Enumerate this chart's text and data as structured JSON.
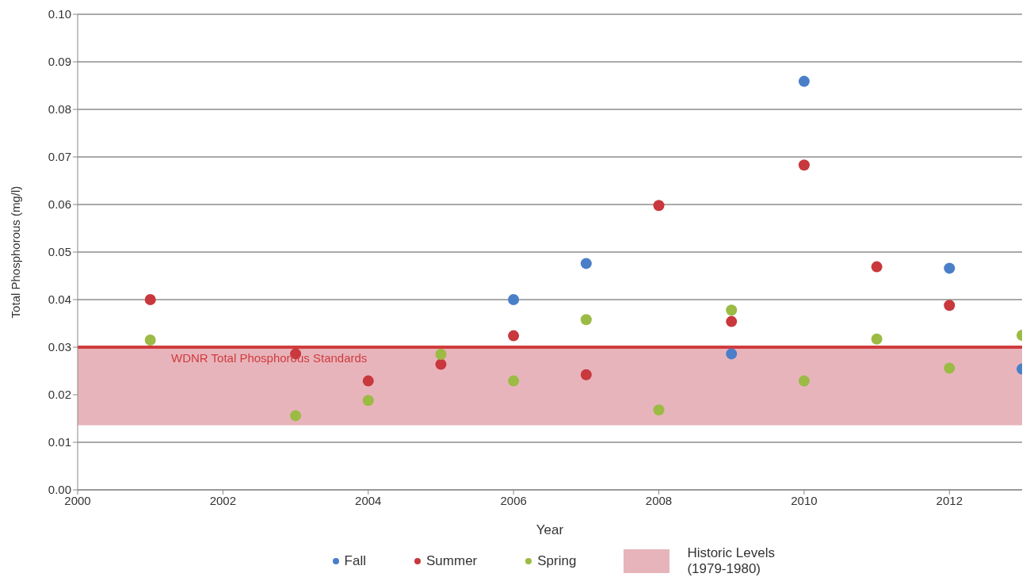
{
  "chart_data": {
    "type": "scatter",
    "xlabel": "Year",
    "ylabel": "Total Phosphorous (mg/l)",
    "xlim": [
      2000,
      2013
    ],
    "xticks": [
      2000,
      2002,
      2004,
      2006,
      2008,
      2010,
      2012
    ],
    "ylim": [
      0,
      0.1
    ],
    "yticks": [
      {
        "value": 0,
        "label": "0.00"
      },
      {
        "value": 0.01,
        "label": "0.01"
      },
      {
        "value": 0.02,
        "label": "0.02"
      },
      {
        "value": 0.03,
        "label": "0.03"
      },
      {
        "value": 0.04,
        "label": "0.04"
      },
      {
        "value": 0.05,
        "label": "0.05"
      },
      {
        "value": 0.06,
        "label": "0.06"
      },
      {
        "value": 0.07,
        "label": "0.07"
      },
      {
        "value": 0.08,
        "label": "0.08"
      },
      {
        "value": 0.09,
        "label": "0.09"
      },
      {
        "value": 0.1,
        "label": "0.10"
      }
    ],
    "grid": "y",
    "legend": "bottom",
    "marker": "circle",
    "series": [
      {
        "name": "Fall",
        "color": "#4a7fc8",
        "x": [
          2006,
          2007,
          2009,
          2010,
          2012,
          2013
        ],
        "values": [
          0.04,
          0.0476,
          0.0286,
          0.0859,
          0.0466,
          0.0254
        ]
      },
      {
        "name": "Summer",
        "color": "#c8383c",
        "x": [
          2001,
          2003,
          2004,
          2005,
          2006,
          2007,
          2008,
          2009,
          2010,
          2011,
          2012
        ],
        "values": [
          0.04,
          0.0286,
          0.0229,
          0.0264,
          0.0324,
          0.0242,
          0.0598,
          0.0354,
          0.0683,
          0.0469,
          0.0388
        ]
      },
      {
        "name": "Spring",
        "color": "#9bbb45",
        "x": [
          2001,
          2003,
          2004,
          2005,
          2006,
          2007,
          2008,
          2009,
          2010,
          2011,
          2012,
          2013
        ],
        "values": [
          0.0315,
          0.0156,
          0.0188,
          0.0285,
          0.0229,
          0.0358,
          0.0168,
          0.0378,
          0.0229,
          0.0317,
          0.0256,
          0.0325
        ]
      }
    ],
    "ref_lines": [
      {
        "axis": "y",
        "value": 0.03,
        "label": "WDNR Total Phosphorous Standards",
        "color": "#d03c3c"
      }
    ],
    "bands": [
      {
        "axis": "y",
        "from": 0.0136,
        "to": 0.03,
        "label": "Historic Levels (1979-1980)",
        "color": "#e8b4bc"
      }
    ]
  }
}
